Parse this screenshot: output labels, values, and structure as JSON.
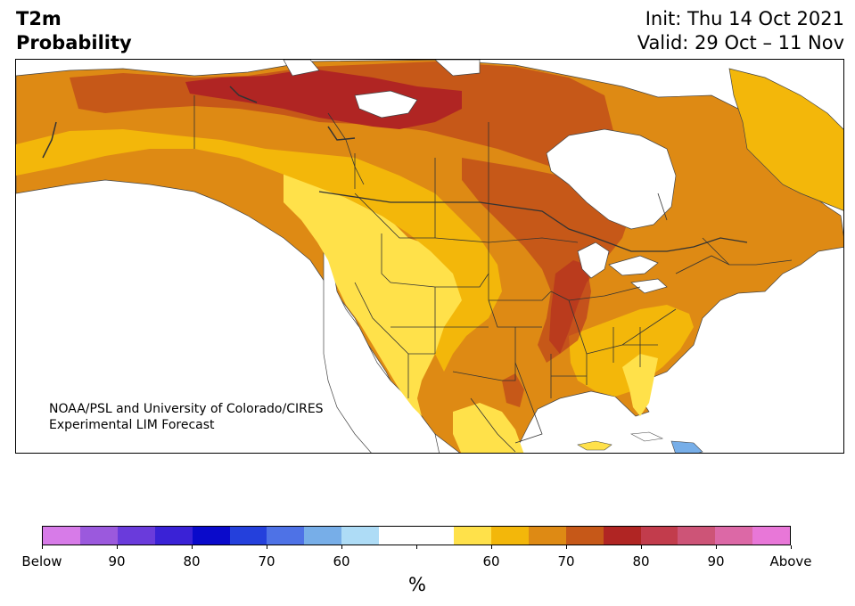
{
  "title": {
    "line1": "T2m",
    "line2": "Probability"
  },
  "forecast": {
    "init": "Init: Thu 14 Oct 2021",
    "valid": "Valid: 29 Oct – 11 Nov"
  },
  "credit": {
    "line1": "NOAA/PSL and University of Colorado/CIRES",
    "line2": "Experimental LIM Forecast"
  },
  "colorbar": {
    "unit": "%",
    "tick_labels": [
      "Below",
      "90",
      "80",
      "70",
      "60",
      "",
      "60",
      "70",
      "80",
      "90",
      "Above"
    ],
    "colors": [
      "#d77be8",
      "#9b59dd",
      "#6a3bdb",
      "#3a22d6",
      "#0a0acb",
      "#2440dc",
      "#4e72e6",
      "#77aee8",
      "#aedcf6",
      "#ffffff",
      "#ffffff",
      "#ffe14a",
      "#f3b70a",
      "#de8a14",
      "#c65818",
      "#b02523",
      "#c23c4c",
      "#cd5477",
      "#dc68a6",
      "#e877d8"
    ]
  },
  "map_legend_colors": {
    "land_white": "#ffffff",
    "prob_55_60": "#ffe14a",
    "prob_60_65": "#f3b70a",
    "prob_65_70": "#de8a14",
    "prob_70_75": "#c65818",
    "prob_75_80": "#b02523",
    "below_light": "#77aee8"
  }
}
